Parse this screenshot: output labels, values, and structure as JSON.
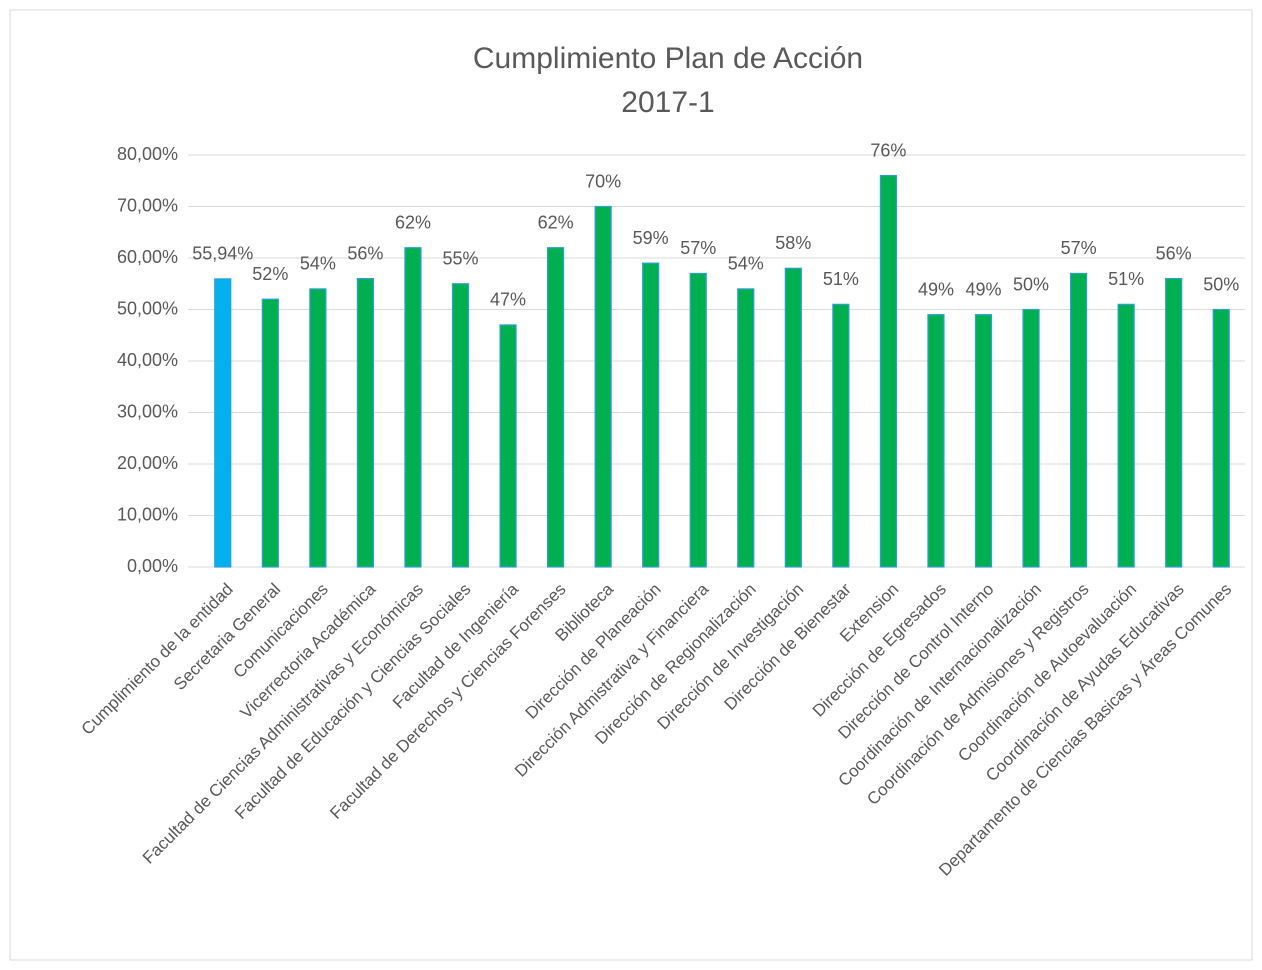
{
  "chart_data": {
    "type": "bar",
    "title": "Cumplimiento Plan de Acción",
    "subtitle": "2017-1",
    "categories": [
      "Cumplimiento de la entidad",
      "Secretaria General",
      "Comunicaciones",
      "Vicerrectoria Académica",
      "Facultad de Ciencias Administrativas y Económicas",
      "Facultad de Educación y Ciencias Sociales",
      "Facultad de Ingeniería",
      "Facultad de Derechos y Ciencias Forenses",
      "Biblioteca",
      "Dirección de Planeación",
      "Dirección Admistrativa y Financiera",
      "Dirección de Regionalización",
      "Dirección de Investigación",
      "Dirección de Bienestar",
      "Extension",
      "Dirección de Egresados",
      "Dirección de Control Interno",
      "Coordinación de Internacionalización",
      "Coordinación de Admisiones y Registros",
      "Coordinación de Autoevaluación",
      "Coordinación de Ayudas Educativas",
      "Departamento de Ciencias Basicas y Áreas Comunes"
    ],
    "values": [
      55.94,
      52,
      54,
      56,
      62,
      55,
      47,
      62,
      70,
      59,
      57,
      54,
      58,
      51,
      76,
      49,
      49,
      50,
      57,
      51,
      56,
      50
    ],
    "value_labels": [
      "55,94%",
      "52%",
      "54%",
      "56%",
      "62%",
      "55%",
      "47%",
      "62%",
      "70%",
      "59%",
      "57%",
      "54%",
      "58%",
      "51%",
      "76%",
      "49%",
      "49%",
      "50%",
      "57%",
      "51%",
      "56%",
      "50%"
    ],
    "colors": [
      "#00b0f0",
      "#00b050",
      "#00b050",
      "#00b050",
      "#00b050",
      "#00b050",
      "#00b050",
      "#00b050",
      "#00b050",
      "#00b050",
      "#00b050",
      "#00b050",
      "#00b050",
      "#00b050",
      "#00b050",
      "#00b050",
      "#00b050",
      "#00b050",
      "#00b050",
      "#00b050",
      "#00b050",
      "#00b050"
    ],
    "ylim": [
      0,
      80
    ],
    "yticks": [
      {
        "value": 0,
        "label": "0,00%"
      },
      {
        "value": 10,
        "label": "10,00%"
      },
      {
        "value": 20,
        "label": "20,00%"
      },
      {
        "value": 30,
        "label": "30,00%"
      },
      {
        "value": 40,
        "label": "40,00%"
      },
      {
        "value": 50,
        "label": "50,00%"
      },
      {
        "value": 60,
        "label": "60,00%"
      },
      {
        "value": 70,
        "label": "70,00%"
      },
      {
        "value": 80,
        "label": "80,00%"
      }
    ],
    "grid": true
  }
}
